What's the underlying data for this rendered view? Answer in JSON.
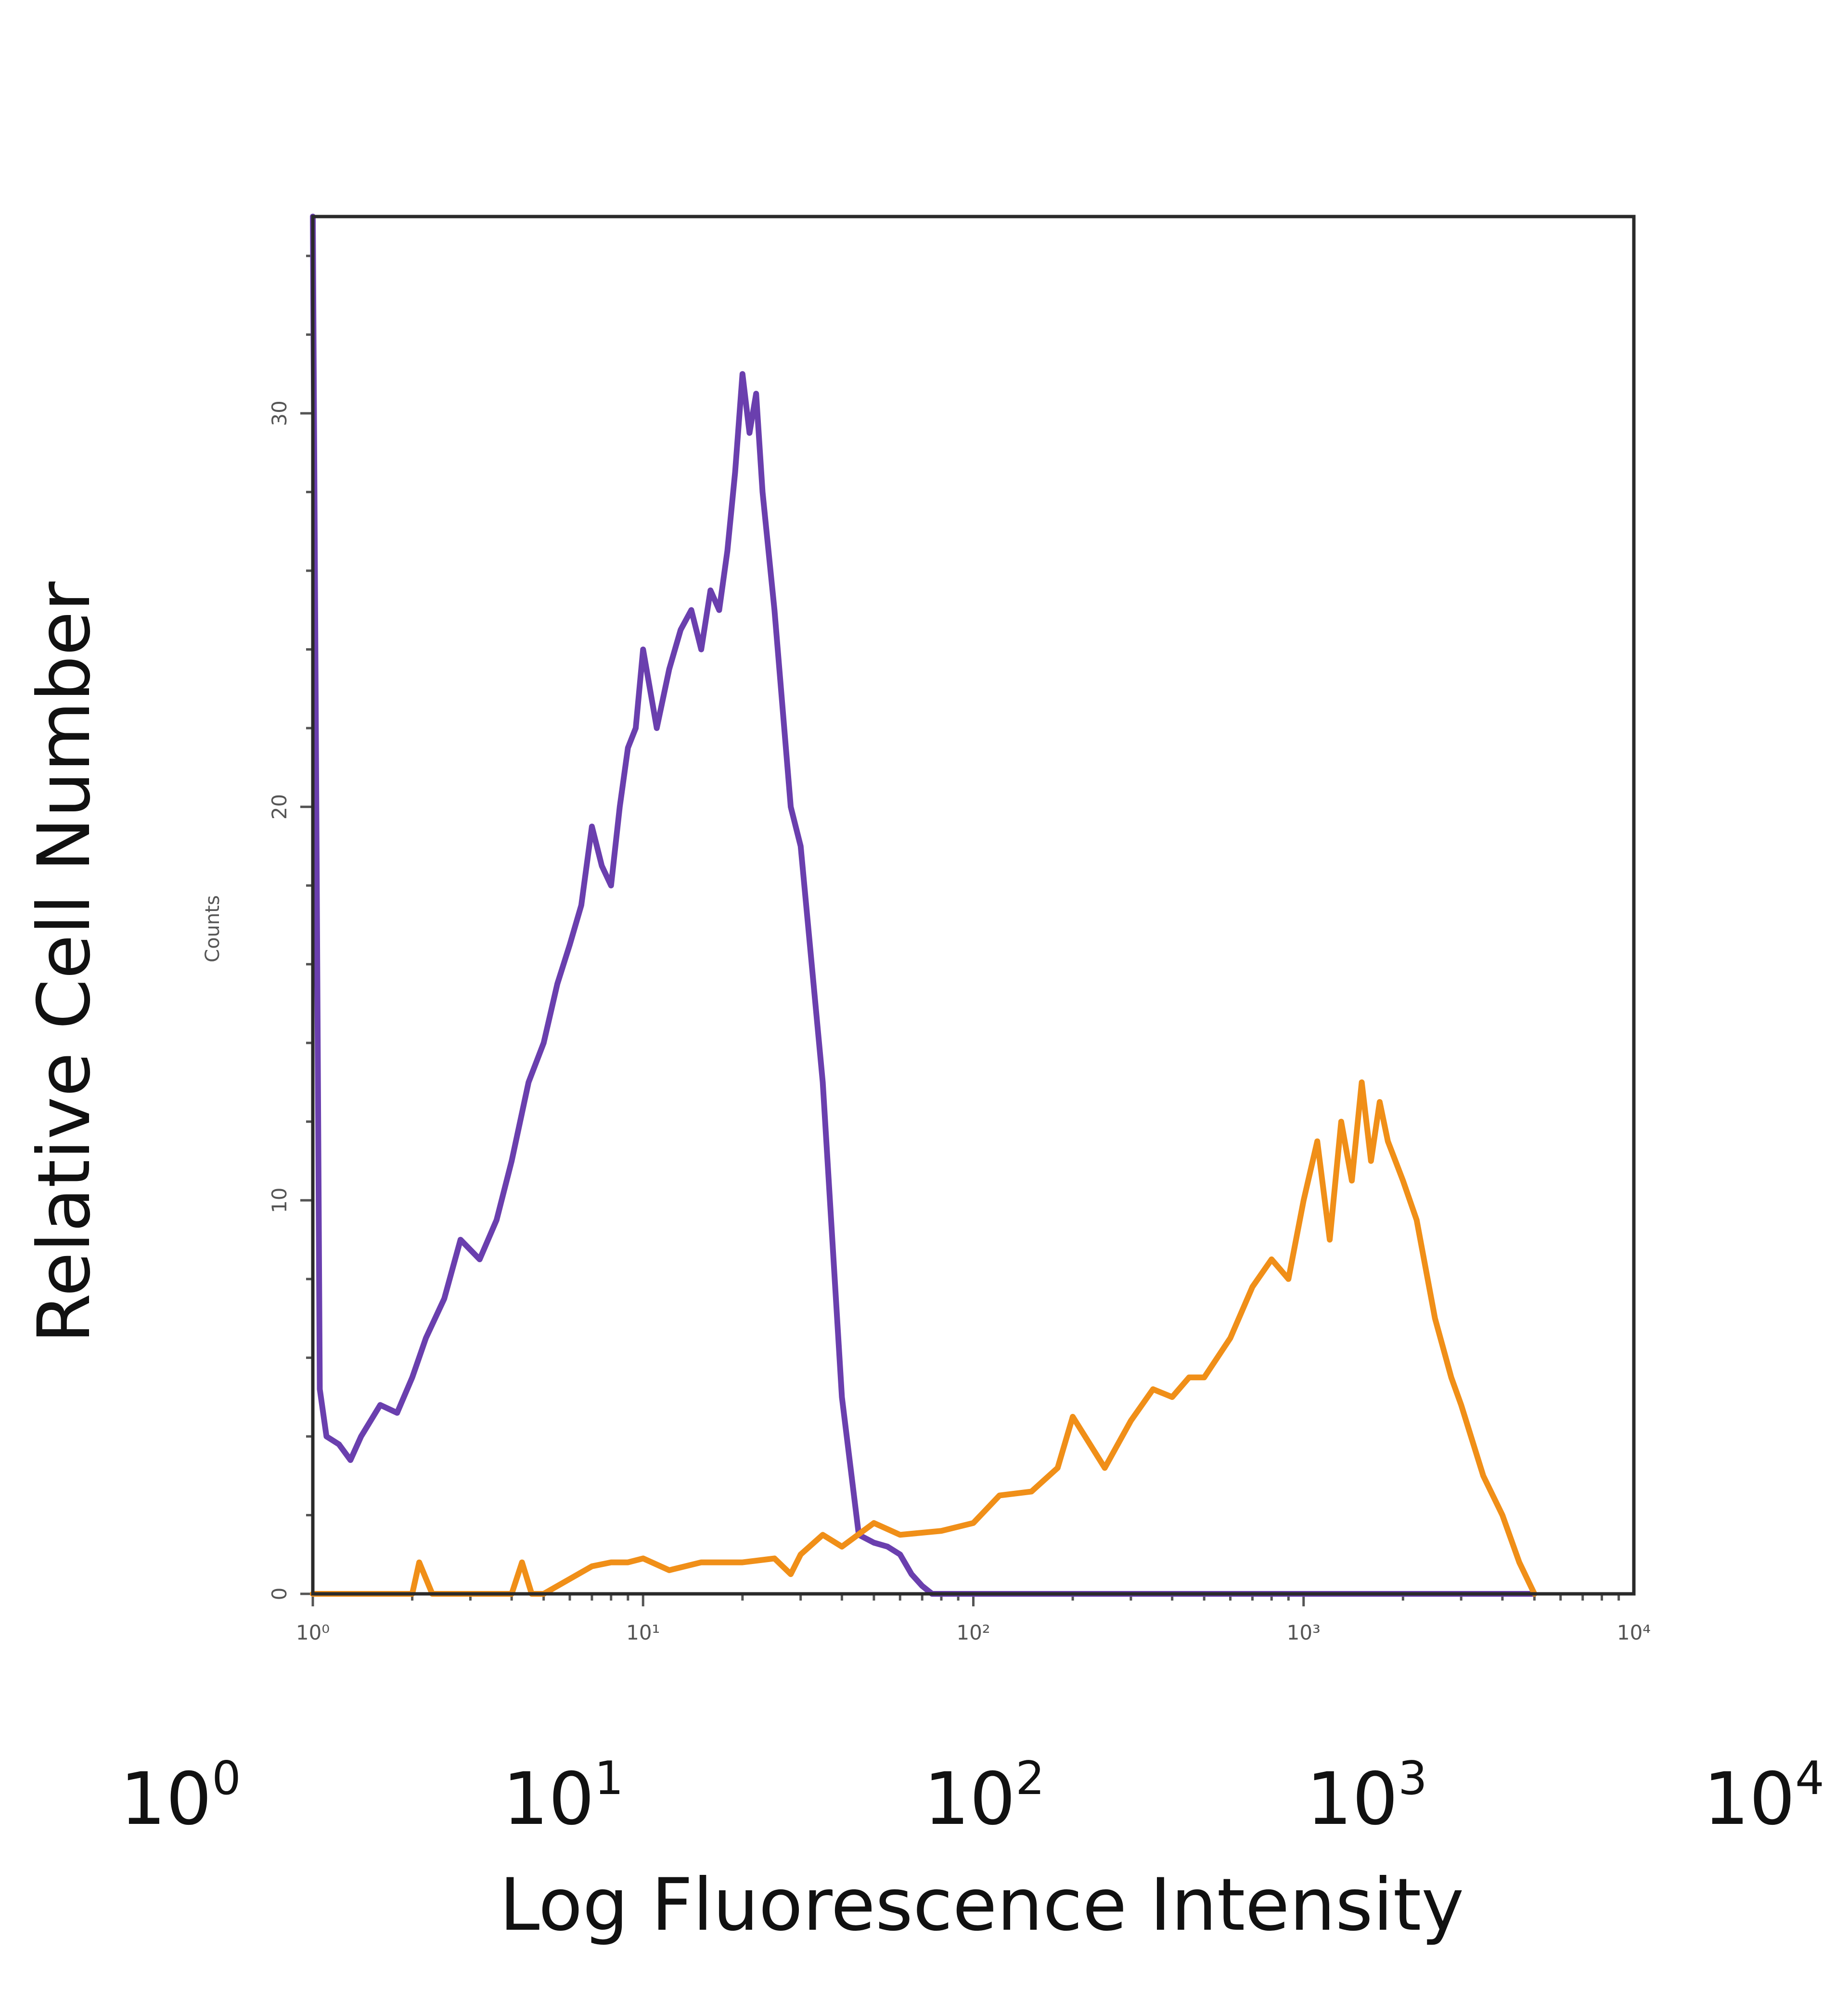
{
  "chart_data": {
    "type": "line",
    "title": "",
    "xlabel": "Log Fluorescence Intensity",
    "ylabel": "Relative Cell Number",
    "inner_ylabel": "Counts",
    "x_scale": "log",
    "xlim": [
      1,
      10000
    ],
    "ylim": [
      0,
      35
    ],
    "grid": false,
    "legend": "none",
    "x_tick_values": [
      1,
      10,
      100,
      1000,
      10000
    ],
    "x_tick_labels": [
      {
        "base": "10",
        "exp": "0"
      },
      {
        "base": "10",
        "exp": "1"
      },
      {
        "base": "10",
        "exp": "2"
      },
      {
        "base": "10",
        "exp": "3"
      },
      {
        "base": "10",
        "exp": "4"
      }
    ],
    "inner_x_tick_labels": [
      "10⁰",
      "10¹",
      "10²",
      "10³",
      "10⁴"
    ],
    "y_ticks": [
      0,
      10,
      20,
      30
    ],
    "y_tick_labels": [
      "0",
      "10",
      "20",
      "30"
    ],
    "series": [
      {
        "color": "#6a3fae",
        "x": [
          1,
          1.05,
          1.1,
          1.2,
          1.3,
          1.4,
          1.6,
          1.8,
          2,
          2.2,
          2.5,
          2.8,
          3.2,
          3.6,
          4,
          4.5,
          5,
          5.5,
          6,
          6.5,
          7,
          7.5,
          8,
          8.5,
          9,
          9.5,
          10,
          11,
          12,
          13,
          14,
          15,
          16,
          17,
          18,
          19,
          20,
          21,
          22,
          23,
          25,
          28,
          30,
          35,
          40,
          45,
          50,
          55,
          60,
          65,
          70,
          75,
          80,
          90,
          100,
          200,
          500,
          1000,
          2000,
          5000
        ],
        "y": [
          35,
          5.2,
          4.0,
          3.8,
          3.4,
          4.0,
          4.8,
          4.6,
          5.5,
          6.5,
          7.5,
          9.0,
          8.5,
          9.5,
          11,
          13,
          14,
          15.5,
          16.5,
          17.5,
          19.5,
          18.5,
          18,
          20,
          21.5,
          22,
          24,
          22,
          23.5,
          24.5,
          25,
          24,
          25.5,
          25,
          26.5,
          28.5,
          31,
          29.5,
          30.5,
          28,
          25,
          20,
          19,
          13,
          5,
          1.5,
          1.3,
          1.2,
          1.0,
          0.5,
          0.2,
          0,
          0,
          0,
          0,
          0,
          0,
          0,
          0,
          0
        ]
      },
      {
        "color": "#f08f18",
        "x": [
          1,
          2,
          2.1,
          2.3,
          3,
          4,
          4.3,
          4.6,
          5,
          7,
          8,
          9,
          10,
          12,
          15,
          20,
          25,
          28,
          30,
          35,
          40,
          50,
          60,
          80,
          100,
          120,
          150,
          180,
          200,
          250,
          300,
          350,
          400,
          450,
          500,
          600,
          700,
          800,
          900,
          1000,
          1100,
          1200,
          1300,
          1400,
          1500,
          1600,
          1700,
          1800,
          2000,
          2200,
          2500,
          2800,
          3000,
          3500,
          4000,
          4500,
          5000
        ],
        "y": [
          0,
          0,
          0.8,
          0,
          0,
          0,
          0.8,
          0,
          0,
          0.7,
          0.8,
          0.8,
          0.9,
          0.6,
          0.8,
          0.8,
          0.9,
          0.5,
          1.0,
          1.5,
          1.2,
          1.8,
          1.5,
          1.6,
          1.8,
          2.5,
          2.6,
          3.2,
          4.5,
          3.2,
          4.4,
          5.2,
          5.0,
          5.5,
          5.5,
          6.5,
          7.8,
          8.5,
          8.0,
          10.0,
          11.5,
          9.0,
          12.0,
          10.5,
          13.0,
          11.0,
          12.5,
          11.5,
          10.5,
          9.5,
          7.0,
          5.5,
          4.8,
          3.0,
          2.0,
          0.8,
          0
        ]
      }
    ]
  }
}
